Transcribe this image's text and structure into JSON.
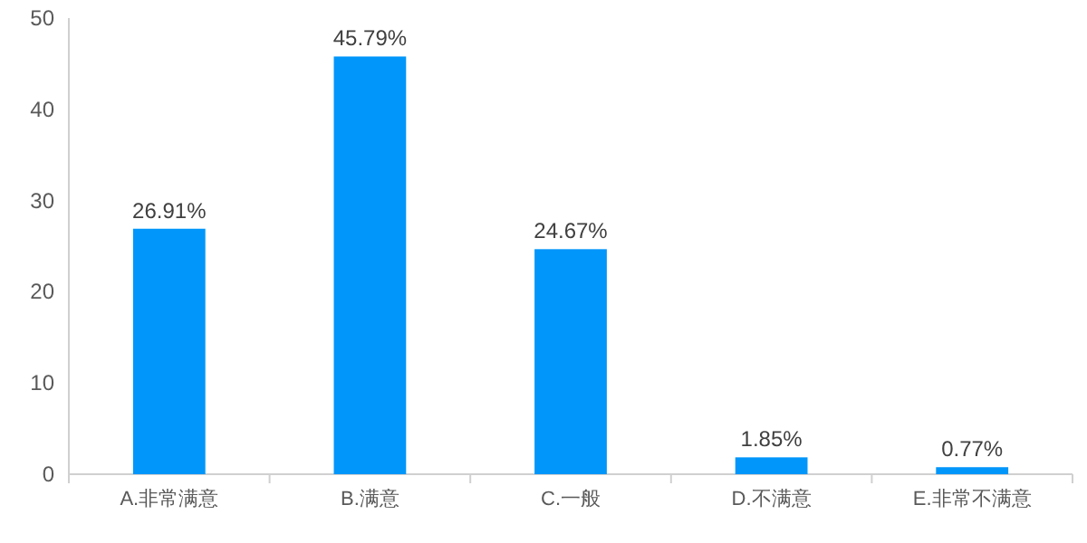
{
  "chart_data": {
    "type": "bar",
    "categories": [
      "A.非常满意",
      "B.满意",
      "C.一般",
      "D.不满意",
      "E.非常不满意"
    ],
    "values": [
      26.91,
      45.79,
      24.67,
      1.85,
      0.77
    ],
    "value_labels": [
      "26.91%",
      "45.79%",
      "24.67%",
      "1.85%",
      "0.77%"
    ],
    "color": "#0096fa",
    "ylim": [
      0,
      50
    ],
    "yticks": [
      0,
      10,
      20,
      30,
      40,
      50
    ],
    "grid": false
  }
}
